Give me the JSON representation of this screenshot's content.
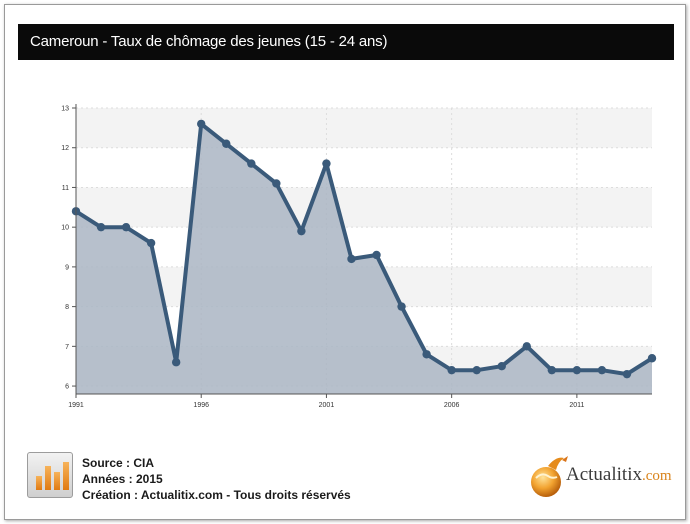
{
  "chart_data": {
    "type": "area",
    "title": "Cameroun - Taux de chômage des jeunes (15 - 24 ans)",
    "xlabel": "",
    "ylabel": "",
    "x": [
      1991,
      1992,
      1993,
      1994,
      1995,
      1996,
      1997,
      1998,
      1999,
      2000,
      2001,
      2002,
      2003,
      2004,
      2005,
      2006,
      2007,
      2008,
      2009,
      2010,
      2011,
      2012,
      2013,
      2014
    ],
    "values": [
      10.4,
      10.0,
      10.0,
      9.6,
      6.6,
      12.6,
      12.1,
      11.6,
      11.1,
      9.9,
      11.6,
      9.2,
      9.3,
      8.0,
      6.8,
      6.4,
      6.4,
      6.5,
      7.0,
      6.4,
      6.4,
      6.4,
      6.3,
      6.7
    ],
    "x_ticks": [
      "1991",
      "1996",
      "2001",
      "2006",
      "2011"
    ],
    "x_tick_values": [
      1991,
      1996,
      2001,
      2006,
      2011
    ],
    "y_ticks": [
      "6",
      "7",
      "8",
      "9",
      "10",
      "11",
      "12",
      "13"
    ],
    "y_tick_values": [
      6,
      7,
      8,
      9,
      10,
      11,
      12,
      13
    ],
    "ylim": [
      5.8,
      13
    ],
    "xlim": [
      1991,
      2014
    ],
    "grid": true,
    "colors": {
      "line": "#3a5a7a",
      "fill": "#aab5c3",
      "band": "#f3f3f3",
      "title_bg": "#0a0a0a"
    }
  },
  "footer": {
    "source": "Source : CIA",
    "years": "Années : 2015",
    "creation": "Création : Actualitix.com - Tous droits réservés",
    "icon": "bar-chart-icon"
  },
  "brand": {
    "name": "Actualitix",
    "suffix": ".com",
    "icon": "globe-icon"
  }
}
